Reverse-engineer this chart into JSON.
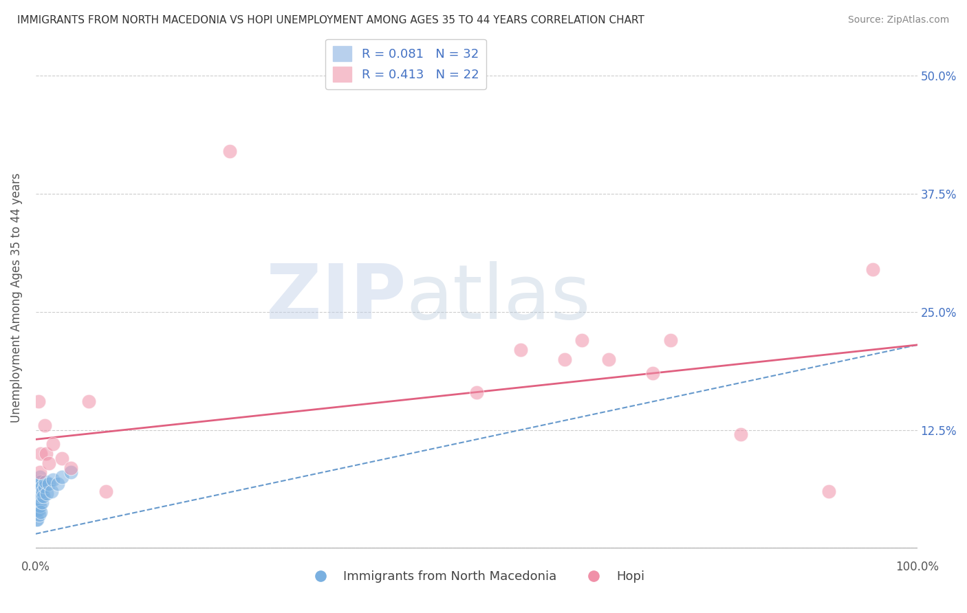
{
  "title": "IMMIGRANTS FROM NORTH MACEDONIA VS HOPI UNEMPLOYMENT AMONG AGES 35 TO 44 YEARS CORRELATION CHART",
  "source": "Source: ZipAtlas.com",
  "ylabel": "Unemployment Among Ages 35 to 44 years",
  "xlim": [
    0.0,
    1.0
  ],
  "ylim": [
    -0.01,
    0.54
  ],
  "yticks": [
    0.0,
    0.125,
    0.25,
    0.375,
    0.5
  ],
  "ytick_labels": [
    "",
    "12.5%",
    "25.0%",
    "37.5%",
    "50.0%"
  ],
  "xticks": [
    0.0,
    1.0
  ],
  "xtick_labels": [
    "0.0%",
    "100.0%"
  ],
  "legend_top": [
    {
      "label": "R = 0.081   N = 32",
      "facecolor": "#b8d0ed"
    },
    {
      "label": "R = 0.413   N = 22",
      "facecolor": "#f5c0cc"
    }
  ],
  "legend_bottom_labels": [
    "Immigrants from North Macedonia",
    "Hopi"
  ],
  "blue_scatter_x": [
    0.001,
    0.001,
    0.001,
    0.002,
    0.002,
    0.002,
    0.002,
    0.003,
    0.003,
    0.003,
    0.004,
    0.004,
    0.004,
    0.005,
    0.005,
    0.005,
    0.006,
    0.006,
    0.006,
    0.007,
    0.007,
    0.008,
    0.009,
    0.01,
    0.011,
    0.013,
    0.015,
    0.018,
    0.02,
    0.025,
    0.03,
    0.04
  ],
  "blue_scatter_y": [
    0.05,
    0.04,
    0.03,
    0.06,
    0.05,
    0.04,
    0.03,
    0.07,
    0.055,
    0.04,
    0.065,
    0.05,
    0.035,
    0.075,
    0.06,
    0.045,
    0.07,
    0.055,
    0.038,
    0.065,
    0.048,
    0.06,
    0.055,
    0.065,
    0.07,
    0.058,
    0.068,
    0.06,
    0.072,
    0.068,
    0.075,
    0.08
  ],
  "pink_scatter_x": [
    0.003,
    0.005,
    0.006,
    0.01,
    0.012,
    0.015,
    0.02,
    0.03,
    0.04,
    0.06,
    0.08,
    0.22,
    0.5,
    0.55,
    0.6,
    0.62,
    0.65,
    0.7,
    0.72,
    0.8,
    0.9,
    0.95
  ],
  "pink_scatter_y": [
    0.155,
    0.08,
    0.1,
    0.13,
    0.1,
    0.09,
    0.11,
    0.095,
    0.085,
    0.155,
    0.06,
    0.42,
    0.165,
    0.21,
    0.2,
    0.22,
    0.2,
    0.185,
    0.22,
    0.12,
    0.06,
    0.295
  ],
  "blue_line_x": [
    0.0,
    1.0
  ],
  "blue_line_y": [
    0.015,
    0.215
  ],
  "pink_line_x": [
    0.0,
    1.0
  ],
  "pink_line_y": [
    0.115,
    0.215
  ],
  "blue_color": "#7ab0e0",
  "pink_color": "#f090a8",
  "blue_line_color": "#6699cc",
  "pink_line_color": "#e06080",
  "watermark_zip": "ZIP",
  "watermark_atlas": "atlas",
  "background_color": "#ffffff",
  "grid_color": "#cccccc"
}
